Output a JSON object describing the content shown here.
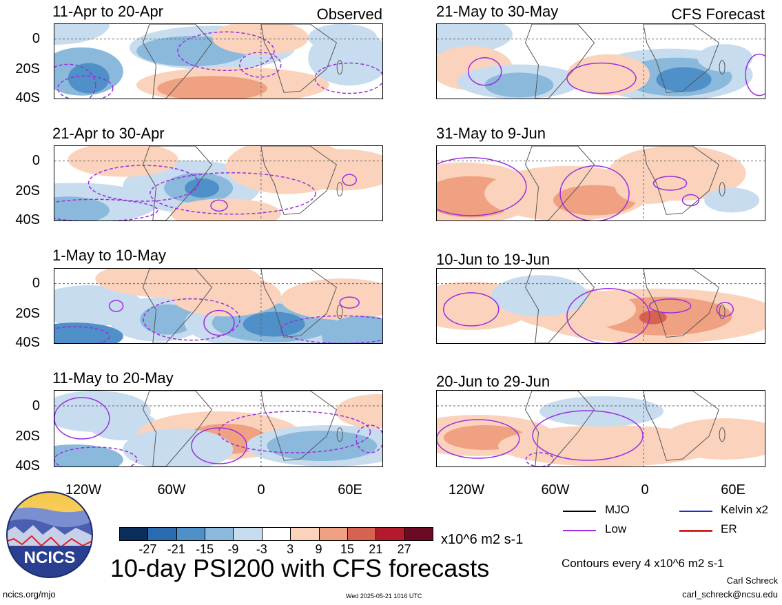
{
  "chart_data": {
    "type": "heatmap",
    "title": "10-day PSI200 with CFS forecasts",
    "units": "x10^6 m2 s-1",
    "region": {
      "lon_ticks": [
        "120W",
        "60W",
        "0",
        "60E"
      ],
      "lat_ticks": [
        "0",
        "20S",
        "40S"
      ]
    },
    "colorbar": {
      "levels": [
        "-27",
        "-21",
        "-15",
        "-9",
        "-3",
        "3",
        "9",
        "15",
        "21",
        "27"
      ],
      "colors": [
        "#0b2d5b",
        "#2a6bb0",
        "#4e90c7",
        "#8bb9dc",
        "#c7dcee",
        "#ffffff",
        "#fbd3bd",
        "#f0a182",
        "#d7624f",
        "#b31a2c",
        "#6b0a22"
      ]
    },
    "contours_note": "Contours every 4 x10^6 m2 s-1",
    "legend": [
      {
        "label": "MJO",
        "color": "#000000"
      },
      {
        "label": "Kelvin x2",
        "color": "#1a2cd6"
      },
      {
        "label": "Low",
        "color": "#9b2de0"
      },
      {
        "label": "ER",
        "color": "#e0302a"
      }
    ],
    "panels": [
      {
        "id": "obs1",
        "label": "11-Apr to 20-Apr",
        "tag": "Observed",
        "type": "observed"
      },
      {
        "id": "obs2",
        "label": "21-Apr to 30-Apr",
        "tag": "",
        "type": "observed"
      },
      {
        "id": "obs3",
        "label": "1-May to 10-May",
        "tag": "",
        "type": "observed"
      },
      {
        "id": "obs4",
        "label": "11-May to 20-May",
        "tag": "",
        "type": "observed"
      },
      {
        "id": "fc1",
        "label": "21-May to 30-May",
        "tag": "CFS Forecast",
        "type": "forecast"
      },
      {
        "id": "fc2",
        "label": "31-May to 9-Jun",
        "tag": "",
        "type": "forecast"
      },
      {
        "id": "fc3",
        "label": "10-Jun to 19-Jun",
        "tag": "",
        "type": "forecast"
      },
      {
        "id": "fc4",
        "label": "20-Jun to 29-Jun",
        "tag": "",
        "type": "forecast"
      }
    ]
  },
  "logo": {
    "text": "NCICS"
  },
  "footer": {
    "url": "ncics.org/mjo",
    "timestamp": "Wed 2025-05-21 1016 UTC",
    "author": "Carl Schreck",
    "email": "carl_schreck@ncsu.edu"
  }
}
